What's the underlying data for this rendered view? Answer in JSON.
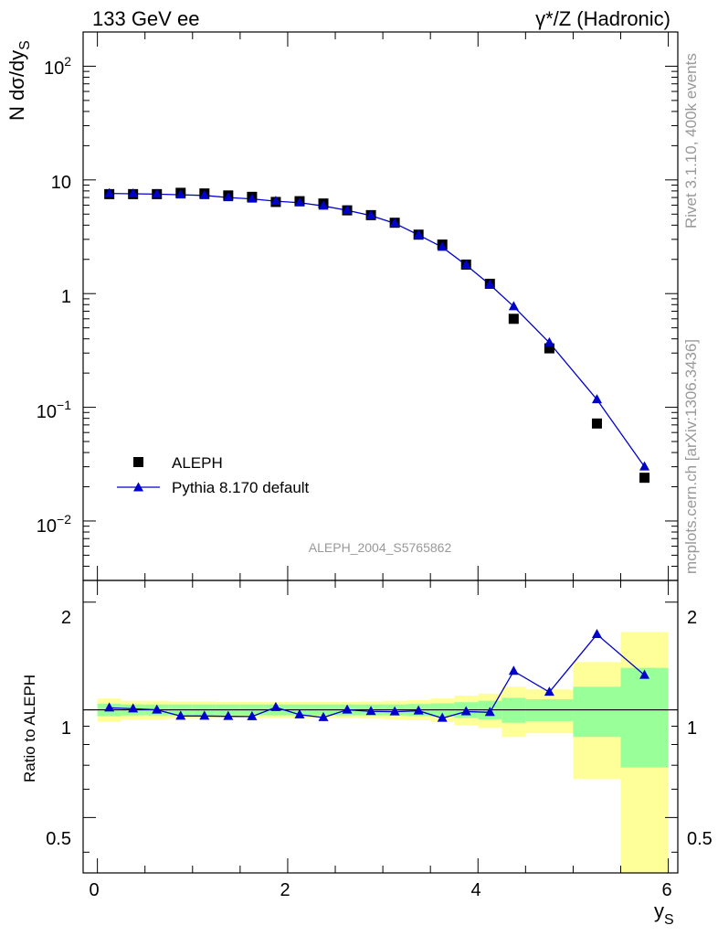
{
  "header": {
    "left": "133 GeV ee",
    "right": "γ*/Z (Hadronic)"
  },
  "side_labels": {
    "rivet": "Rivet 3.1.10,  400k events",
    "mcplots": "mcplots.cern.ch [arXiv:1306.3436]"
  },
  "watermark": "ALEPH_2004_S5765862",
  "colors": {
    "data": "#000000",
    "mc": "#0000cc",
    "band_inner": "#99ff99",
    "band_outer": "#ffff99"
  },
  "chart_data": [
    {
      "type": "scatter",
      "panel": "main",
      "ylabel": "N dσ/dy_S",
      "yscale": "log",
      "xlim": [
        -0.15,
        6.1
      ],
      "ylim": [
        0.003,
        200
      ],
      "ytick_labels": [
        "10^-2",
        "10^-1",
        "1",
        "10",
        "10^2"
      ],
      "legend_position": "bottom-left",
      "series": [
        {
          "name": "ALEPH",
          "marker": "square",
          "x": [
            0.125,
            0.375,
            0.625,
            0.875,
            1.125,
            1.375,
            1.625,
            1.875,
            2.125,
            2.375,
            2.625,
            2.875,
            3.125,
            3.375,
            3.625,
            3.875,
            4.125,
            4.375,
            4.75,
            5.25,
            5.75
          ],
          "y": [
            7.5,
            7.5,
            7.5,
            7.7,
            7.6,
            7.3,
            7.1,
            6.4,
            6.5,
            6.2,
            5.4,
            4.9,
            4.2,
            3.3,
            2.7,
            1.8,
            1.22,
            0.6,
            0.33,
            0.072,
            0.024
          ]
        },
        {
          "name": "Pythia 8.170 default",
          "marker": "triangle",
          "x": [
            0.125,
            0.375,
            0.625,
            0.875,
            1.125,
            1.375,
            1.625,
            1.875,
            2.125,
            2.375,
            2.625,
            2.875,
            3.125,
            3.375,
            3.625,
            3.875,
            4.125,
            4.375,
            4.75,
            5.25,
            5.75
          ],
          "y": [
            7.6,
            7.55,
            7.5,
            7.4,
            7.3,
            7.0,
            6.8,
            6.5,
            6.3,
            5.9,
            5.4,
            4.85,
            4.15,
            3.28,
            2.56,
            1.78,
            1.2,
            0.77,
            0.37,
            0.117,
            0.03
          ]
        }
      ]
    },
    {
      "type": "line",
      "panel": "ratio",
      "xlabel": "y_S",
      "ylabel": "Ratio to ALEPH",
      "xlim": [
        -0.15,
        6.1
      ],
      "ylim": [
        0.35,
        2.3
      ],
      "xticks": [
        0,
        2,
        4,
        6
      ],
      "yticks": [
        0.5,
        1,
        2
      ],
      "bands": {
        "edges": [
          0,
          0.25,
          0.5,
          0.75,
          1.0,
          1.25,
          1.5,
          1.75,
          2.0,
          2.25,
          2.5,
          2.75,
          3.0,
          3.25,
          3.5,
          3.75,
          4.0,
          4.25,
          4.5,
          5.0,
          5.5,
          6.0
        ],
        "inner_low": [
          0.96,
          0.965,
          0.965,
          0.965,
          0.965,
          0.965,
          0.965,
          0.965,
          0.965,
          0.965,
          0.965,
          0.965,
          0.965,
          0.962,
          0.958,
          0.95,
          0.94,
          0.92,
          0.93,
          0.84,
          0.69
        ],
        "inner_high": [
          1.04,
          1.035,
          1.035,
          1.035,
          1.035,
          1.035,
          1.035,
          1.035,
          1.035,
          1.035,
          1.035,
          1.035,
          1.035,
          1.038,
          1.042,
          1.05,
          1.06,
          1.08,
          1.07,
          1.16,
          1.31
        ],
        "outer_low": [
          0.925,
          0.94,
          0.94,
          0.945,
          0.945,
          0.948,
          0.948,
          0.948,
          0.948,
          0.948,
          0.948,
          0.945,
          0.94,
          0.935,
          0.925,
          0.905,
          0.89,
          0.84,
          0.86,
          0.64,
          0.35
        ],
        "outer_high": [
          1.075,
          1.06,
          1.06,
          1.055,
          1.055,
          1.052,
          1.052,
          1.052,
          1.052,
          1.052,
          1.052,
          1.055,
          1.06,
          1.065,
          1.075,
          1.095,
          1.11,
          1.16,
          1.14,
          1.36,
          1.65
        ]
      },
      "series": [
        {
          "name": "Pythia 8.170 default",
          "x": [
            0.125,
            0.375,
            0.625,
            0.875,
            1.125,
            1.375,
            1.625,
            1.875,
            2.125,
            2.375,
            2.625,
            2.875,
            3.125,
            3.375,
            3.625,
            3.875,
            4.125,
            4.375,
            4.75,
            5.25,
            5.75
          ],
          "y": [
            1.013,
            1.007,
            1.0,
            0.961,
            0.961,
            0.959,
            0.958,
            1.016,
            0.969,
            0.952,
            1.0,
            0.99,
            0.988,
            0.994,
            0.948,
            0.989,
            0.984,
            1.283,
            1.121,
            1.625,
            1.25
          ]
        }
      ]
    }
  ]
}
